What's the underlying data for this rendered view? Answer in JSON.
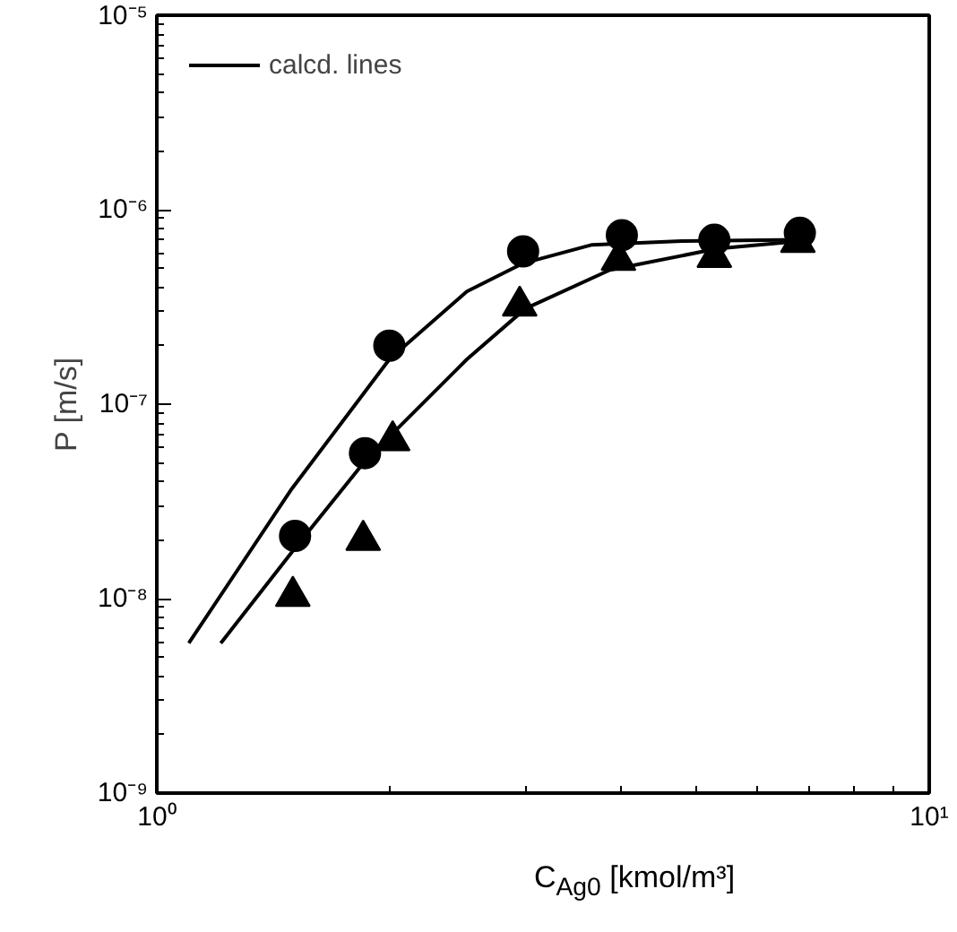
{
  "chart_data": {
    "type": "scatter",
    "xlabel": "C$_{Ag0}$ [kmol/m³]",
    "ylabel": "P [m/s]",
    "log": "xy",
    "grid": false,
    "legend": "top left",
    "xlim": [
      1,
      10
    ],
    "ylim": [
      1e-09,
      1e-05
    ],
    "xticks": [
      {
        "value": 1,
        "label": "10⁰"
      },
      {
        "value": 10,
        "label": "10¹"
      }
    ],
    "yticks": [
      {
        "value": 1e-09,
        "label": "10⁻⁹"
      },
      {
        "value": 1e-08,
        "label": "10⁻⁸"
      },
      {
        "value": 1e-07,
        "label": "10⁻⁷"
      },
      {
        "value": 1e-06,
        "label": "10⁻⁶"
      },
      {
        "value": 1e-05,
        "label": "10⁻⁵"
      }
    ],
    "series": [
      {
        "marker": "circle",
        "color": "#000000",
        "x": [
          1.51,
          1.86,
          2.0,
          2.98,
          4.0,
          5.27,
          6.8
        ],
        "values": [
          2.1e-08,
          5.6e-08,
          2e-07,
          6.1e-07,
          7.4e-07,
          7e-07,
          7.6e-07
        ]
      },
      {
        "marker": "triangle",
        "color": "#000000",
        "x": [
          1.5,
          1.85,
          2.02,
          2.95,
          3.96,
          5.27,
          6.76
        ],
        "values": [
          1.03e-08,
          2e-08,
          6.5e-08,
          3.2e-07,
          5.5e-07,
          5.7e-07,
          6.8e-07
        ]
      },
      {
        "type": "line",
        "name": "calcd. lines",
        "color": "#000000",
        "line_style": "solid",
        "x": [
          1.1,
          1.49,
          2.0,
          2.52,
          2.98,
          3.66,
          4.78,
          6.82
        ],
        "values": [
          5.9e-09,
          3.6e-08,
          1.7e-07,
          3.8e-07,
          5.3e-07,
          6.6e-07,
          6.9e-07,
          7e-07
        ]
      },
      {
        "type": "line",
        "color": "#000000",
        "line_style": "solid",
        "x": [
          1.21,
          1.5,
          1.86,
          2.52,
          3.0,
          3.86,
          5.31,
          6.82
        ],
        "values": [
          5.9e-09,
          1.76e-08,
          5.1e-08,
          1.7e-07,
          3.1e-07,
          4.9e-07,
          6.3e-07,
          6.9e-07
        ]
      }
    ]
  }
}
